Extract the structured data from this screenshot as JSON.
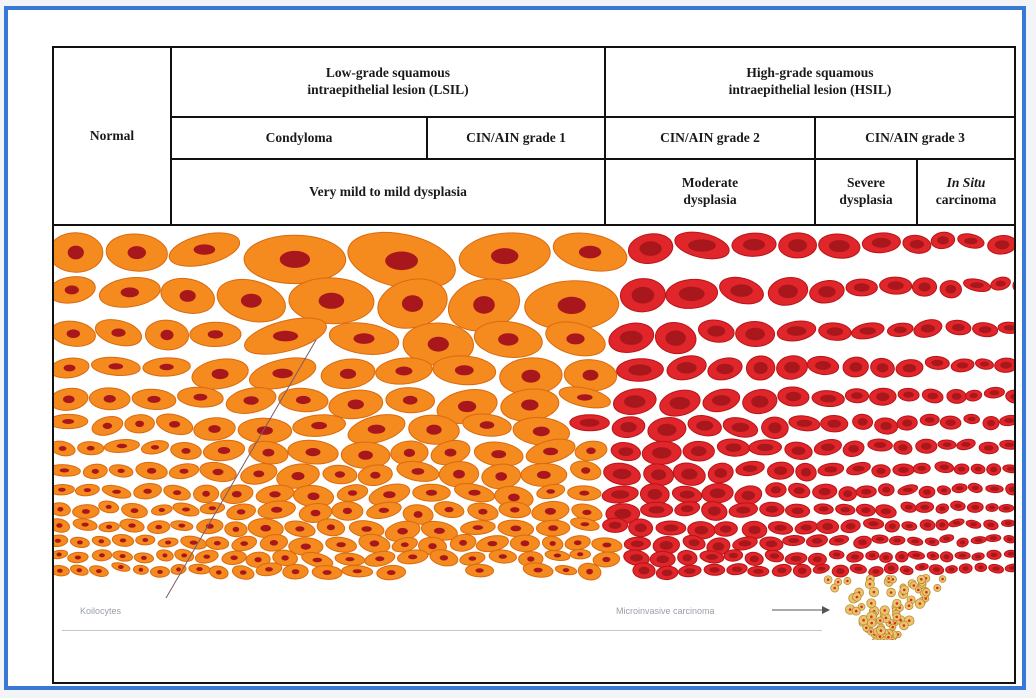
{
  "header": {
    "normal": "Normal",
    "lsil": "Low-grade squamous\nintraepithelial lesion (LSIL)",
    "hsil": "High-grade squamous\nintraepithelial lesion (HSIL)",
    "condyloma": "Condyloma",
    "cin1": "CIN/AIN grade 1",
    "cin2": "CIN/AIN grade 2",
    "cin3": "CIN/AIN grade 3",
    "mild": "Very mild to mild dysplasia",
    "moderate": "Moderate\ndysplasia",
    "severe": "Severe\ndysplasia",
    "insitu_italic": "In Situ",
    "insitu_rest": "carcinoma"
  },
  "labels": {
    "koilocytes": "Koilocytes",
    "microinvasive": "Microinvasive carcinoma"
  },
  "colors": {
    "frame": "#3a78d6",
    "orange_cell": "#f58a1f",
    "orange_outline": "#d96a10",
    "red_cell": "#e0262a",
    "red_outline": "#b81418",
    "nucleus": "#a8171b",
    "invasive": "#e8c56a"
  }
}
